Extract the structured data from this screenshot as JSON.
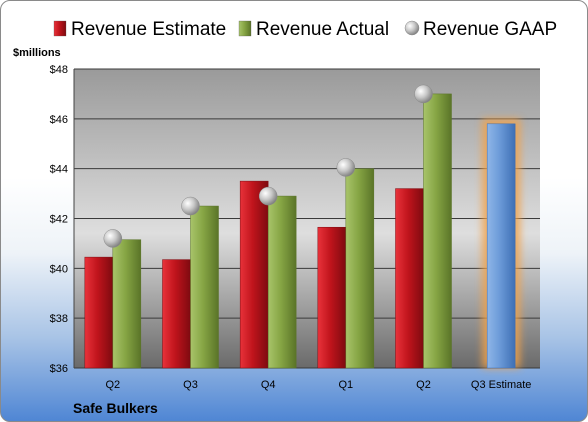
{
  "chart_data": {
    "type": "bar",
    "title": "",
    "company": "Safe Bulkers",
    "ylabel": "$millions",
    "ylim": [
      36,
      48
    ],
    "ytick_step": 2,
    "ytick_prefix": "$",
    "grid": true,
    "legend_position": "top",
    "categories": [
      "Q2",
      "Q3",
      "Q4",
      "Q1",
      "Q2",
      "Q3 Estimate"
    ],
    "series": [
      {
        "name": "Revenue Estimate",
        "kind": "bar",
        "color": "#c0141c",
        "values": [
          40.45,
          40.35,
          43.5,
          41.65,
          43.2,
          45.8
        ]
      },
      {
        "name": "Revenue Actual",
        "kind": "bar",
        "color": "#86a544",
        "values": [
          41.15,
          42.5,
          42.9,
          44.0,
          47.0,
          null
        ]
      },
      {
        "name": "Revenue GAAP",
        "kind": "marker",
        "color": "#b4b4b4",
        "values": [
          41.2,
          42.5,
          42.9,
          44.05,
          47.0,
          null
        ]
      }
    ],
    "estimate_bar": {
      "category_index": 5,
      "color": "#6b9ad8",
      "glow": "#f2a24a"
    }
  }
}
